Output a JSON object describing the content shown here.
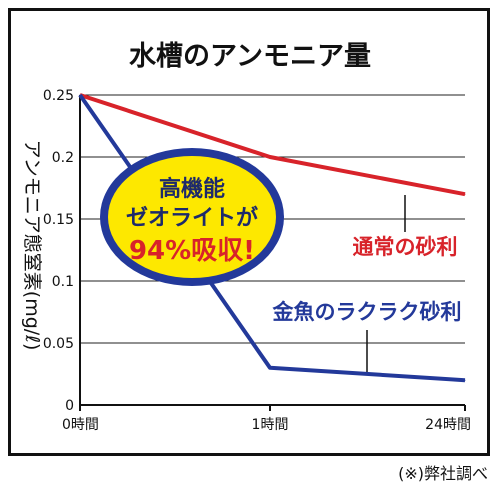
{
  "chart_data": {
    "type": "line",
    "title": "水槽のアンモニア量",
    "ylabel": "アンモニア態窒素(mg/ℓ)",
    "ylim": [
      0,
      0.25
    ],
    "yticks": [
      "0",
      "0.05",
      "0.1",
      "0.15",
      "0.2",
      "0.25"
    ],
    "x": [
      "0時間",
      "1時間",
      "24時間"
    ],
    "grid": true,
    "series": [
      {
        "name": "通常の砂利",
        "values": [
          0.25,
          0.2,
          0.17
        ],
        "color": "#d8232a"
      },
      {
        "name": "金魚のラクラク砂利",
        "values": [
          0.25,
          0.03,
          0.02
        ],
        "color": "#23399a"
      }
    ],
    "badge": {
      "line1": "高機能",
      "line2": "ゼオライトが",
      "line3": "94%吸収!"
    },
    "note": "(※)弊社調べ"
  }
}
